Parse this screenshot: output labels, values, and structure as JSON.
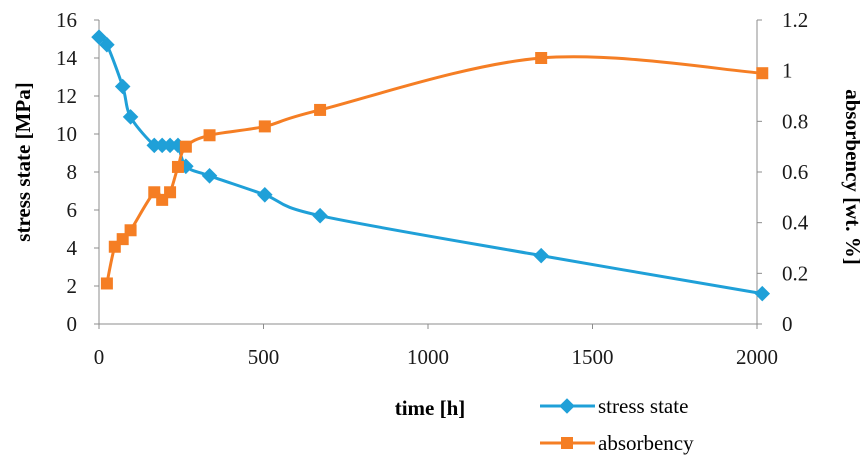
{
  "chart_data": {
    "type": "line",
    "xlabel": "time [h]",
    "ylabel_left": "stress state [MPa]",
    "ylabel_right": "absorbency [wt. %]",
    "xlim": [
      0,
      2000
    ],
    "ylim_left": [
      0,
      16
    ],
    "ylim_right": [
      0,
      1.2
    ],
    "x_ticks": [
      "0",
      "500",
      "1000",
      "1500",
      "2000"
    ],
    "y_left_ticks": [
      "0",
      "2",
      "4",
      "6",
      "8",
      "10",
      "12",
      "14",
      "16"
    ],
    "y_right_ticks": [
      "0",
      "0.2",
      "0.4",
      "0.6",
      "0.8",
      "1",
      "1.2"
    ],
    "grid": false,
    "legend_position": "bottom-right",
    "series": [
      {
        "name": "stress state",
        "axis": "left",
        "color": "#1fa0d8",
        "marker": "diamond",
        "points": [
          [
            0,
            15.1
          ],
          [
            24,
            14.7
          ],
          [
            72,
            12.5
          ],
          [
            96,
            10.9
          ],
          [
            168,
            9.4
          ],
          [
            192,
            9.4
          ],
          [
            216,
            9.4
          ],
          [
            240,
            9.4
          ],
          [
            264,
            8.3
          ],
          [
            336,
            7.8
          ],
          [
            504,
            6.8
          ],
          [
            672,
            5.7
          ],
          [
            1344,
            3.6
          ],
          [
            2016,
            1.6
          ]
        ]
      },
      {
        "name": "absorbency",
        "axis": "right",
        "color": "#f57e24",
        "marker": "square",
        "points": [
          [
            24,
            0.16
          ],
          [
            48,
            0.305
          ],
          [
            72,
            0.335
          ],
          [
            96,
            0.37
          ],
          [
            168,
            0.52
          ],
          [
            192,
            0.49
          ],
          [
            216,
            0.52
          ],
          [
            240,
            0.62
          ],
          [
            264,
            0.7
          ],
          [
            336,
            0.745
          ],
          [
            504,
            0.78
          ],
          [
            672,
            0.845
          ],
          [
            1344,
            1.05
          ],
          [
            2016,
            0.99
          ]
        ]
      }
    ]
  }
}
